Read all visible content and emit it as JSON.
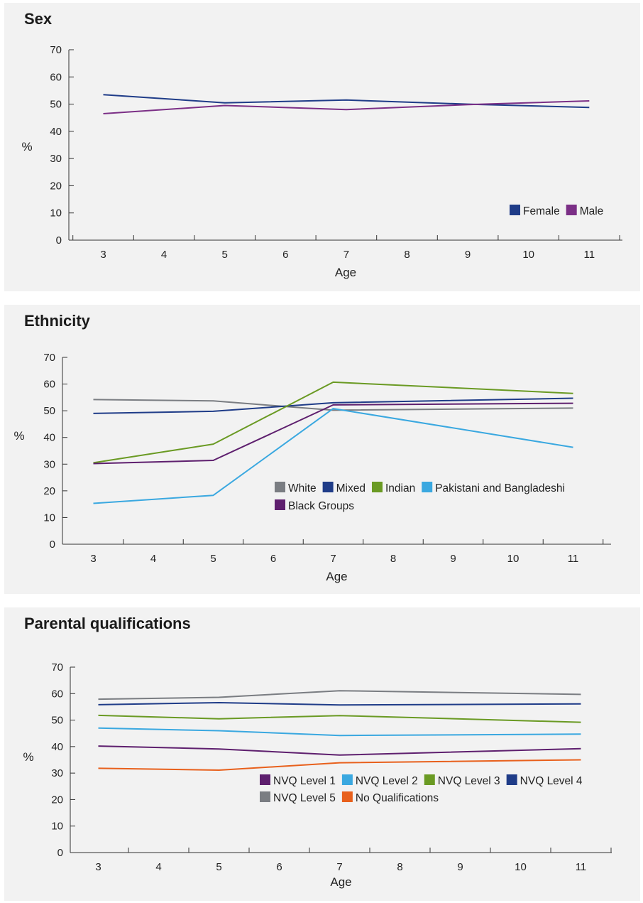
{
  "chart_data": [
    {
      "type": "line",
      "title": "Sex",
      "xlabel": "Age",
      "ylabel": "%",
      "x": [
        3,
        4,
        5,
        6,
        7,
        8,
        9,
        10,
        11
      ],
      "ylim": [
        0,
        70
      ],
      "yticks": [
        0,
        10,
        20,
        30,
        40,
        50,
        60,
        70
      ],
      "grid": false,
      "legend_position": "bottom-right",
      "series": [
        {
          "name": "Female",
          "color": "#1f3c88",
          "points": [
            [
              3,
              53.5
            ],
            [
              5,
              50.5
            ],
            [
              7,
              51.5
            ],
            [
              9,
              50
            ],
            [
              11,
              48.8
            ]
          ]
        },
        {
          "name": "Male",
          "color": "#7b2f86",
          "points": [
            [
              3,
              46.5
            ],
            [
              5,
              49.5
            ],
            [
              7,
              48
            ],
            [
              9,
              49.8
            ],
            [
              11,
              51.2
            ]
          ]
        }
      ]
    },
    {
      "type": "line",
      "title": "Ethnicity",
      "xlabel": "Age",
      "ylabel": "%",
      "x": [
        3,
        4,
        5,
        6,
        7,
        8,
        9,
        10,
        11
      ],
      "ylim": [
        0,
        70
      ],
      "yticks": [
        0,
        10,
        20,
        30,
        40,
        50,
        60,
        70
      ],
      "grid": false,
      "legend_position": "lower-right",
      "series": [
        {
          "name": "White",
          "color": "#7a7d82",
          "points": [
            [
              3,
              54.2
            ],
            [
              5,
              53.7
            ],
            [
              7,
              50.2
            ],
            [
              11,
              51
            ]
          ]
        },
        {
          "name": "Mixed",
          "color": "#1f3c88",
          "points": [
            [
              3,
              49
            ],
            [
              5,
              49.8
            ],
            [
              7,
              53
            ],
            [
              11,
              54.7
            ]
          ]
        },
        {
          "name": "Indian",
          "color": "#6a9a23",
          "points": [
            [
              3,
              30.5
            ],
            [
              5,
              37.5
            ],
            [
              7,
              60.7
            ],
            [
              11,
              56.5
            ]
          ]
        },
        {
          "name": "Pakistani and Bangladeshi",
          "color": "#3aa8e0",
          "points": [
            [
              3,
              15.3
            ],
            [
              5,
              18.3
            ],
            [
              7,
              50.8
            ],
            [
              11,
              36.3
            ]
          ]
        },
        {
          "name": "Black Groups",
          "color": "#5e1f6e",
          "points": [
            [
              3,
              30.2
            ],
            [
              5,
              31.4
            ],
            [
              7,
              52.2
            ],
            [
              11,
              52.8
            ]
          ]
        }
      ]
    },
    {
      "type": "line",
      "title": "Parental qualifications",
      "xlabel": "Age",
      "ylabel": "%",
      "x": [
        3,
        4,
        5,
        6,
        7,
        8,
        9,
        10,
        11
      ],
      "ylim": [
        0,
        70
      ],
      "yticks": [
        0,
        10,
        20,
        30,
        40,
        50,
        60,
        70
      ],
      "grid": false,
      "legend_position": "lower-right",
      "series": [
        {
          "name": "NVQ Level 1",
          "color": "#5e1f6e",
          "points": [
            [
              3,
              40.2
            ],
            [
              5,
              39.1
            ],
            [
              7,
              36.8
            ],
            [
              11,
              39.2
            ]
          ]
        },
        {
          "name": "NVQ Level 2",
          "color": "#3aa8e0",
          "points": [
            [
              3,
              47
            ],
            [
              5,
              46
            ],
            [
              7,
              44.2
            ],
            [
              11,
              44.7
            ]
          ]
        },
        {
          "name": "NVQ Level 3",
          "color": "#6a9a23",
          "points": [
            [
              3,
              51.8
            ],
            [
              5,
              50.5
            ],
            [
              7,
              51.7
            ],
            [
              11,
              49.2
            ]
          ]
        },
        {
          "name": "NVQ Level 4",
          "color": "#1f3c88",
          "points": [
            [
              3,
              55.8
            ],
            [
              5,
              56.6
            ],
            [
              7,
              55.7
            ],
            [
              11,
              56.1
            ]
          ]
        },
        {
          "name": "NVQ Level 5",
          "color": "#7a7d82",
          "points": [
            [
              3,
              57.9
            ],
            [
              5,
              58.6
            ],
            [
              7,
              61.1
            ],
            [
              11,
              59.7
            ]
          ]
        },
        {
          "name": "No Qualifications",
          "color": "#e8601c",
          "points": [
            [
              3,
              31.8
            ],
            [
              5,
              31.1
            ],
            [
              7,
              33.9
            ],
            [
              11,
              35
            ]
          ]
        }
      ]
    }
  ]
}
